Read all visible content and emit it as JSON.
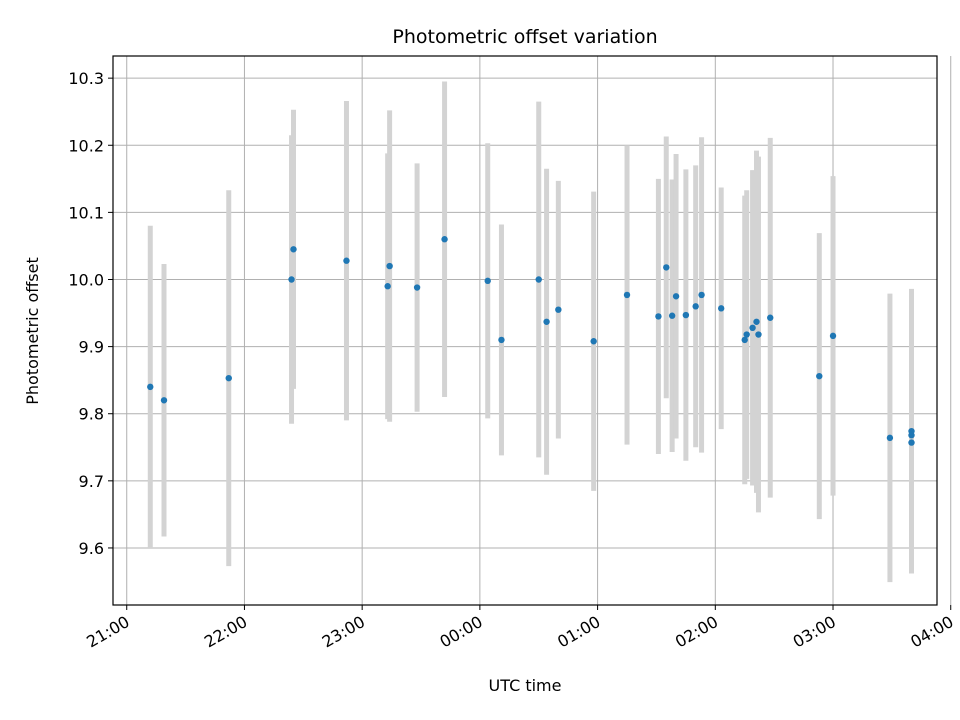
{
  "chart_data": {
    "type": "scatter",
    "title": "Photometric offset variation",
    "xlabel": "UTC time",
    "ylabel": "Photometric offset",
    "grid": true,
    "x_ticks": [
      "21:00",
      "22:00",
      "23:00",
      "00:00",
      "01:00",
      "02:00",
      "03:00",
      "04:00"
    ],
    "y_ticks": [
      "9.6",
      "9.7",
      "9.8",
      "9.9",
      "10.0",
      "10.1",
      "10.2",
      "10.3"
    ],
    "xlim": [
      "20:53",
      "03:53"
    ],
    "ylim": [
      9.515,
      10.333
    ],
    "colors": {
      "point": "#1f77b4",
      "errorbar": "#d3d3d3",
      "grid": "#b0b0b0"
    },
    "points": [
      {
        "t": "21:12",
        "y": 9.84,
        "err": 0.24
      },
      {
        "t": "21:19",
        "y": 9.82,
        "err": 0.203
      },
      {
        "t": "21:52",
        "y": 9.853,
        "err": 0.28
      },
      {
        "t": "22:24",
        "y": 10.0,
        "err": 0.215
      },
      {
        "t": "22:25",
        "y": 10.045,
        "err": 0.208
      },
      {
        "t": "22:52",
        "y": 10.028,
        "err": 0.238
      },
      {
        "t": "23:13",
        "y": 9.99,
        "err": 0.198
      },
      {
        "t": "23:14",
        "y": 10.02,
        "err": 0.232
      },
      {
        "t": "23:28",
        "y": 9.988,
        "err": 0.185
      },
      {
        "t": "23:42",
        "y": 10.06,
        "err": 0.235
      },
      {
        "t": "00:04",
        "y": 9.998,
        "err": 0.205
      },
      {
        "t": "00:11",
        "y": 9.91,
        "err": 0.172
      },
      {
        "t": "00:30",
        "y": 10.0,
        "err": 0.265
      },
      {
        "t": "00:34",
        "y": 9.937,
        "err": 0.228
      },
      {
        "t": "00:40",
        "y": 9.955,
        "err": 0.192
      },
      {
        "t": "00:58",
        "y": 9.908,
        "err": 0.223
      },
      {
        "t": "01:15",
        "y": 9.977,
        "err": 0.223
      },
      {
        "t": "01:31",
        "y": 9.945,
        "err": 0.205
      },
      {
        "t": "01:35",
        "y": 10.018,
        "err": 0.195
      },
      {
        "t": "01:38",
        "y": 9.946,
        "err": 0.203
      },
      {
        "t": "01:40",
        "y": 9.975,
        "err": 0.212
      },
      {
        "t": "01:45",
        "y": 9.947,
        "err": 0.217
      },
      {
        "t": "01:50",
        "y": 9.96,
        "err": 0.21
      },
      {
        "t": "01:53",
        "y": 9.977,
        "err": 0.235
      },
      {
        "t": "02:03",
        "y": 9.957,
        "err": 0.18
      },
      {
        "t": "02:15",
        "y": 9.91,
        "err": 0.215
      },
      {
        "t": "02:16",
        "y": 9.918,
        "err": 0.215
      },
      {
        "t": "02:19",
        "y": 9.928,
        "err": 0.235
      },
      {
        "t": "02:21",
        "y": 9.937,
        "err": 0.255
      },
      {
        "t": "02:22",
        "y": 9.918,
        "err": 0.265
      },
      {
        "t": "02:28",
        "y": 9.943,
        "err": 0.268
      },
      {
        "t": "02:53",
        "y": 9.856,
        "err": 0.213
      },
      {
        "t": "03:00",
        "y": 9.916,
        "err": 0.238
      },
      {
        "t": "03:29",
        "y": 9.764,
        "err": 0.215
      },
      {
        "t": "03:40",
        "y": 9.757,
        "err": 0.18
      },
      {
        "t": "03:40",
        "y": 9.768,
        "err": 0.2
      },
      {
        "t": "03:40",
        "y": 9.774,
        "err": 0.212
      }
    ]
  }
}
